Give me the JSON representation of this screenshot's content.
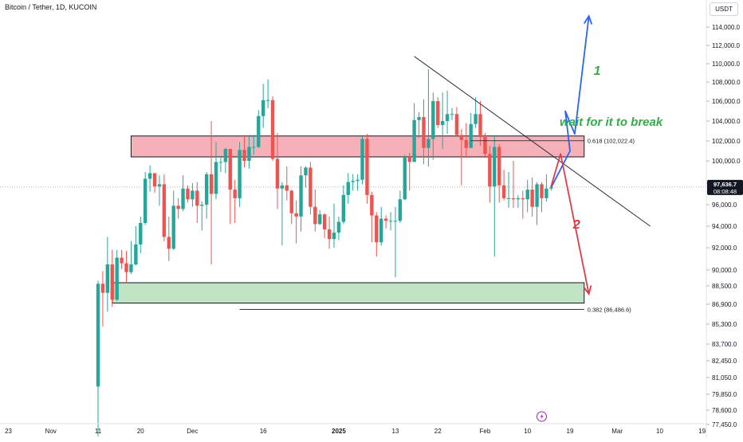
{
  "header": {
    "title": "Bitcoin / Tether, 1D, KUCOIN",
    "currency": "USDT"
  },
  "colors": {
    "up": "#26a69a",
    "down": "#ef5350",
    "resistance_zone": "#f4a3ac",
    "support_zone": "#b5dfb8",
    "scenario_1": "#2962ff",
    "scenario_2": "#e53945",
    "annotation_green": "#3aa84d",
    "price_badge": "#131722"
  },
  "chart_data": {
    "type": "candlestick",
    "symbol": "BTC/USDT",
    "exchange": "KUCOIN",
    "interval": "1D",
    "current_price_label": "97,636.7",
    "countdown_label": "08:08:48",
    "current_price": 97636.7,
    "y_ticks": [
      {
        "value": 114000,
        "label": "114,000.0"
      },
      {
        "value": 112000,
        "label": "112,000.0"
      },
      {
        "value": 110000,
        "label": "110,000.0"
      },
      {
        "value": 108000,
        "label": "108,000.0"
      },
      {
        "value": 106000,
        "label": "106,000.0"
      },
      {
        "value": 104000,
        "label": "104,000.0"
      },
      {
        "value": 102000,
        "label": "102,000.0"
      },
      {
        "value": 100000,
        "label": "100,000.0"
      },
      {
        "value": 98000,
        "label": "98,000.0"
      },
      {
        "value": 96000,
        "label": "96,000.0"
      },
      {
        "value": 94000,
        "label": "94,000.0"
      },
      {
        "value": 92000,
        "label": "92,000.0"
      },
      {
        "value": 90000,
        "label": "90,000.0"
      },
      {
        "value": 88500,
        "label": "88,500.0"
      },
      {
        "value": 86900,
        "label": "86,900.0"
      },
      {
        "value": 85300,
        "label": "85,300.0"
      },
      {
        "value": 83700,
        "label": "83,700.0"
      },
      {
        "value": 82450,
        "label": "82,450.0"
      },
      {
        "value": 81050,
        "label": "81,050.0"
      },
      {
        "value": 79850,
        "label": "79,850.0"
      },
      {
        "value": 78600,
        "label": "78,600.0"
      },
      {
        "value": 77450,
        "label": "77,450.0"
      }
    ],
    "x_ticks": [
      {
        "date": "2024-10-23",
        "label": "23"
      },
      {
        "date": "2024-11-01",
        "label": "Nov"
      },
      {
        "date": "2024-11-11",
        "label": "11"
      },
      {
        "date": "2024-11-20",
        "label": "20"
      },
      {
        "date": "2024-12-01",
        "label": "Dec"
      },
      {
        "date": "2024-12-16",
        "label": "16"
      },
      {
        "date": "2025-01-01",
        "label": "2025"
      },
      {
        "date": "2025-01-13",
        "label": "13"
      },
      {
        "date": "2025-01-22",
        "label": "22"
      },
      {
        "date": "2025-02-01",
        "label": "Feb"
      },
      {
        "date": "2025-02-10",
        "label": "10"
      },
      {
        "date": "2025-02-19",
        "label": "19"
      },
      {
        "date": "2025-03-01",
        "label": "Mar"
      },
      {
        "date": "2025-03-10",
        "label": "10"
      },
      {
        "date": "2025-03-19",
        "label": "19"
      }
    ],
    "candles": [
      {
        "date": "2024-11-11",
        "o": 80400,
        "h": 89000,
        "l": 76500,
        "c": 88700
      },
      {
        "date": "2024-11-12",
        "o": 88700,
        "h": 89900,
        "l": 85100,
        "c": 87900
      },
      {
        "date": "2024-11-13",
        "o": 87900,
        "h": 93000,
        "l": 86300,
        "c": 90500
      },
      {
        "date": "2024-11-14",
        "o": 90500,
        "h": 91800,
        "l": 86700,
        "c": 87300
      },
      {
        "date": "2024-11-15",
        "o": 87300,
        "h": 91800,
        "l": 87200,
        "c": 91100
      },
      {
        "date": "2024-11-16",
        "o": 91100,
        "h": 91800,
        "l": 90100,
        "c": 90600
      },
      {
        "date": "2024-11-17",
        "o": 90600,
        "h": 91700,
        "l": 88800,
        "c": 89800
      },
      {
        "date": "2024-11-18",
        "o": 89800,
        "h": 92600,
        "l": 89600,
        "c": 90500
      },
      {
        "date": "2024-11-19",
        "o": 90500,
        "h": 94000,
        "l": 90400,
        "c": 92300
      },
      {
        "date": "2024-11-20",
        "o": 92300,
        "h": 94900,
        "l": 91500,
        "c": 94300
      },
      {
        "date": "2024-11-21",
        "o": 94300,
        "h": 99000,
        "l": 94100,
        "c": 98400
      },
      {
        "date": "2024-11-22",
        "o": 98400,
        "h": 99600,
        "l": 97200,
        "c": 98900
      },
      {
        "date": "2024-11-23",
        "o": 98900,
        "h": 98900,
        "l": 97100,
        "c": 97700
      },
      {
        "date": "2024-11-24",
        "o": 97700,
        "h": 98700,
        "l": 95900,
        "c": 97900
      },
      {
        "date": "2024-11-25",
        "o": 97900,
        "h": 98800,
        "l": 92600,
        "c": 93000
      },
      {
        "date": "2024-11-26",
        "o": 93000,
        "h": 94900,
        "l": 90800,
        "c": 91900
      },
      {
        "date": "2024-11-27",
        "o": 91900,
        "h": 97300,
        "l": 91800,
        "c": 95900
      },
      {
        "date": "2024-11-28",
        "o": 95900,
        "h": 96600,
        "l": 94700,
        "c": 95600
      },
      {
        "date": "2024-11-29",
        "o": 95600,
        "h": 98700,
        "l": 95400,
        "c": 97500
      },
      {
        "date": "2024-11-30",
        "o": 97500,
        "h": 97800,
        "l": 96200,
        "c": 96500
      },
      {
        "date": "2024-12-01",
        "o": 96500,
        "h": 98000,
        "l": 95800,
        "c": 97300
      },
      {
        "date": "2024-12-02",
        "o": 97300,
        "h": 98100,
        "l": 94300,
        "c": 95900
      },
      {
        "date": "2024-12-03",
        "o": 95900,
        "h": 96300,
        "l": 93600,
        "c": 96000
      },
      {
        "date": "2024-12-04",
        "o": 96000,
        "h": 99000,
        "l": 94700,
        "c": 98800
      },
      {
        "date": "2024-12-05",
        "o": 98800,
        "h": 104000,
        "l": 90500,
        "c": 97000
      },
      {
        "date": "2024-12-06",
        "o": 97000,
        "h": 101900,
        "l": 96500,
        "c": 99900
      },
      {
        "date": "2024-12-07",
        "o": 99900,
        "h": 100500,
        "l": 99000,
        "c": 99900
      },
      {
        "date": "2024-12-08",
        "o": 99900,
        "h": 101300,
        "l": 98900,
        "c": 101200
      },
      {
        "date": "2024-12-09",
        "o": 101200,
        "h": 101200,
        "l": 94200,
        "c": 97400
      },
      {
        "date": "2024-12-10",
        "o": 97400,
        "h": 98300,
        "l": 94300,
        "c": 96600
      },
      {
        "date": "2024-12-11",
        "o": 96600,
        "h": 101900,
        "l": 95800,
        "c": 101100
      },
      {
        "date": "2024-12-12",
        "o": 101100,
        "h": 102500,
        "l": 99400,
        "c": 100000
      },
      {
        "date": "2024-12-13",
        "o": 100000,
        "h": 102600,
        "l": 99300,
        "c": 101400
      },
      {
        "date": "2024-12-14",
        "o": 101400,
        "h": 102600,
        "l": 100600,
        "c": 101400
      },
      {
        "date": "2024-12-15",
        "o": 101400,
        "h": 105100,
        "l": 101300,
        "c": 104500
      },
      {
        "date": "2024-12-16",
        "o": 104500,
        "h": 107800,
        "l": 103300,
        "c": 106100
      },
      {
        "date": "2024-12-17",
        "o": 106100,
        "h": 108300,
        "l": 105300,
        "c": 106100
      },
      {
        "date": "2024-12-18",
        "o": 106100,
        "h": 106500,
        "l": 100000,
        "c": 100200
      },
      {
        "date": "2024-12-19",
        "o": 100200,
        "h": 102800,
        "l": 95600,
        "c": 97500
      },
      {
        "date": "2024-12-20",
        "o": 97500,
        "h": 98100,
        "l": 92200,
        "c": 97800
      },
      {
        "date": "2024-12-21",
        "o": 97800,
        "h": 99500,
        "l": 96400,
        "c": 97300
      },
      {
        "date": "2024-12-22",
        "o": 97300,
        "h": 97400,
        "l": 94200,
        "c": 95200
      },
      {
        "date": "2024-12-23",
        "o": 95200,
        "h": 96400,
        "l": 92400,
        "c": 94900
      },
      {
        "date": "2024-12-24",
        "o": 94900,
        "h": 99500,
        "l": 93500,
        "c": 98700
      },
      {
        "date": "2024-12-25",
        "o": 98700,
        "h": 99500,
        "l": 97600,
        "c": 99400
      },
      {
        "date": "2024-12-26",
        "o": 99400,
        "h": 99900,
        "l": 95100,
        "c": 95800
      },
      {
        "date": "2024-12-27",
        "o": 95800,
        "h": 97400,
        "l": 93500,
        "c": 94200
      },
      {
        "date": "2024-12-28",
        "o": 94200,
        "h": 95500,
        "l": 94100,
        "c": 95100
      },
      {
        "date": "2024-12-29",
        "o": 95100,
        "h": 95200,
        "l": 92900,
        "c": 93700
      },
      {
        "date": "2024-12-30",
        "o": 93700,
        "h": 94900,
        "l": 91900,
        "c": 92800
      },
      {
        "date": "2024-12-31",
        "o": 92800,
        "h": 96100,
        "l": 92000,
        "c": 93400
      },
      {
        "date": "2025-01-01",
        "o": 93400,
        "h": 94900,
        "l": 92700,
        "c": 94400
      },
      {
        "date": "2025-01-02",
        "o": 94400,
        "h": 97800,
        "l": 94200,
        "c": 96900
      },
      {
        "date": "2025-01-03",
        "o": 96900,
        "h": 98900,
        "l": 96100,
        "c": 98100
      },
      {
        "date": "2025-01-04",
        "o": 98100,
        "h": 98800,
        "l": 97300,
        "c": 98200
      },
      {
        "date": "2025-01-05",
        "o": 98200,
        "h": 98800,
        "l": 97300,
        "c": 98300
      },
      {
        "date": "2025-01-06",
        "o": 98300,
        "h": 102500,
        "l": 97900,
        "c": 102200
      },
      {
        "date": "2025-01-07",
        "o": 102200,
        "h": 102700,
        "l": 96100,
        "c": 96900
      },
      {
        "date": "2025-01-08",
        "o": 96900,
        "h": 97200,
        "l": 92500,
        "c": 95000
      },
      {
        "date": "2025-01-09",
        "o": 95000,
        "h": 95300,
        "l": 91200,
        "c": 92500
      },
      {
        "date": "2025-01-10",
        "o": 92500,
        "h": 95800,
        "l": 92200,
        "c": 94700
      },
      {
        "date": "2025-01-11",
        "o": 94700,
        "h": 95000,
        "l": 93800,
        "c": 94500
      },
      {
        "date": "2025-01-12",
        "o": 94500,
        "h": 95300,
        "l": 93600,
        "c": 94500
      },
      {
        "date": "2025-01-13",
        "o": 94500,
        "h": 95800,
        "l": 89300,
        "c": 94500
      },
      {
        "date": "2025-01-14",
        "o": 94500,
        "h": 97300,
        "l": 94300,
        "c": 96500
      },
      {
        "date": "2025-01-15",
        "o": 96500,
        "h": 100600,
        "l": 96400,
        "c": 100400
      },
      {
        "date": "2025-01-16",
        "o": 100400,
        "h": 100800,
        "l": 97300,
        "c": 99900
      },
      {
        "date": "2025-01-17",
        "o": 99900,
        "h": 105800,
        "l": 99900,
        "c": 104100
      },
      {
        "date": "2025-01-18",
        "o": 104100,
        "h": 104900,
        "l": 102300,
        "c": 104400
      },
      {
        "date": "2025-01-19",
        "o": 104400,
        "h": 106200,
        "l": 99700,
        "c": 101300
      },
      {
        "date": "2025-01-20",
        "o": 101300,
        "h": 109400,
        "l": 99500,
        "c": 102200
      },
      {
        "date": "2025-01-21",
        "o": 102200,
        "h": 106900,
        "l": 100100,
        "c": 106000
      },
      {
        "date": "2025-01-22",
        "o": 106000,
        "h": 106400,
        "l": 103300,
        "c": 103600
      },
      {
        "date": "2025-01-23",
        "o": 103600,
        "h": 106900,
        "l": 101200,
        "c": 104000
      },
      {
        "date": "2025-01-24",
        "o": 104000,
        "h": 107100,
        "l": 102700,
        "c": 104700
      },
      {
        "date": "2025-01-25",
        "o": 104700,
        "h": 105300,
        "l": 104100,
        "c": 104700
      },
      {
        "date": "2025-01-26",
        "o": 104700,
        "h": 105400,
        "l": 102500,
        "c": 102600
      },
      {
        "date": "2025-01-27",
        "o": 102600,
        "h": 103200,
        "l": 97800,
        "c": 102100
      },
      {
        "date": "2025-01-28",
        "o": 102100,
        "h": 103800,
        "l": 100300,
        "c": 101300
      },
      {
        "date": "2025-01-29",
        "o": 101300,
        "h": 104800,
        "l": 101300,
        "c": 103700
      },
      {
        "date": "2025-01-30",
        "o": 103700,
        "h": 106400,
        "l": 103300,
        "c": 104700
      },
      {
        "date": "2025-01-31",
        "o": 104700,
        "h": 106000,
        "l": 101500,
        "c": 102400
      },
      {
        "date": "2025-02-01",
        "o": 102400,
        "h": 102800,
        "l": 100300,
        "c": 100700
      },
      {
        "date": "2025-02-02",
        "o": 100700,
        "h": 101500,
        "l": 96200,
        "c": 97700
      },
      {
        "date": "2025-02-03",
        "o": 97700,
        "h": 102500,
        "l": 91200,
        "c": 101400
      },
      {
        "date": "2025-02-04",
        "o": 101400,
        "h": 101700,
        "l": 96200,
        "c": 97800
      },
      {
        "date": "2025-02-05",
        "o": 97800,
        "h": 99200,
        "l": 96400,
        "c": 96600
      },
      {
        "date": "2025-02-06",
        "o": 96600,
        "h": 99000,
        "l": 95700,
        "c": 96600
      },
      {
        "date": "2025-02-07",
        "o": 96600,
        "h": 100000,
        "l": 95700,
        "c": 96500
      },
      {
        "date": "2025-02-08",
        "o": 96500,
        "h": 96900,
        "l": 95700,
        "c": 96600
      },
      {
        "date": "2025-02-09",
        "o": 96600,
        "h": 97300,
        "l": 94700,
        "c": 96500
      },
      {
        "date": "2025-02-10",
        "o": 96500,
        "h": 98300,
        "l": 95300,
        "c": 97400
      },
      {
        "date": "2025-02-11",
        "o": 97400,
        "h": 98500,
        "l": 94900,
        "c": 95800
      },
      {
        "date": "2025-02-12",
        "o": 95800,
        "h": 98100,
        "l": 94100,
        "c": 97900
      },
      {
        "date": "2025-02-13",
        "o": 97900,
        "h": 98100,
        "l": 95300,
        "c": 96600
      },
      {
        "date": "2025-02-14",
        "o": 96600,
        "h": 98800,
        "l": 96300,
        "c": 97500
      },
      {
        "date": "2025-02-15",
        "o": 97500,
        "h": 97900,
        "l": 97300,
        "c": 97600
      }
    ],
    "zones": [
      {
        "name": "resistance",
        "from_date": "2024-11-18",
        "to_date": "2025-02-22",
        "low": 100400,
        "high": 102500
      },
      {
        "name": "support",
        "from_date": "2024-11-14",
        "to_date": "2025-02-22",
        "low": 87000,
        "high": 88800
      }
    ],
    "fib_levels": [
      {
        "label": "0.618 (102,022.4)",
        "value": 102022.4,
        "from_date": "2025-01-29",
        "to_date": "2025-02-22"
      },
      {
        "label": "0.382 (86,486.6)",
        "value": 86486.6,
        "from_date": "2024-12-11",
        "to_date": "2025-02-22"
      }
    ],
    "trendline": {
      "from": {
        "date": "2025-01-17",
        "price": 110800
      },
      "to": {
        "date": "2025-03-08",
        "price": 94000
      }
    },
    "scenarios": [
      {
        "label": "1",
        "points": [
          {
            "date": "2025-02-15",
            "price": 97600
          },
          {
            "date": "2025-02-19",
            "price": 101000
          },
          {
            "date": "2025-02-18",
            "price": 105000
          },
          {
            "date": "2025-02-20",
            "price": 102700
          },
          {
            "date": "2025-02-23",
            "price": 115200
          }
        ]
      },
      {
        "label": "2",
        "points": [
          {
            "date": "2025-02-15",
            "price": 97700
          },
          {
            "date": "2025-02-17",
            "price": 100700
          },
          {
            "date": "2025-02-23",
            "price": 87800
          }
        ]
      }
    ],
    "annotation": "wait for it to break"
  }
}
